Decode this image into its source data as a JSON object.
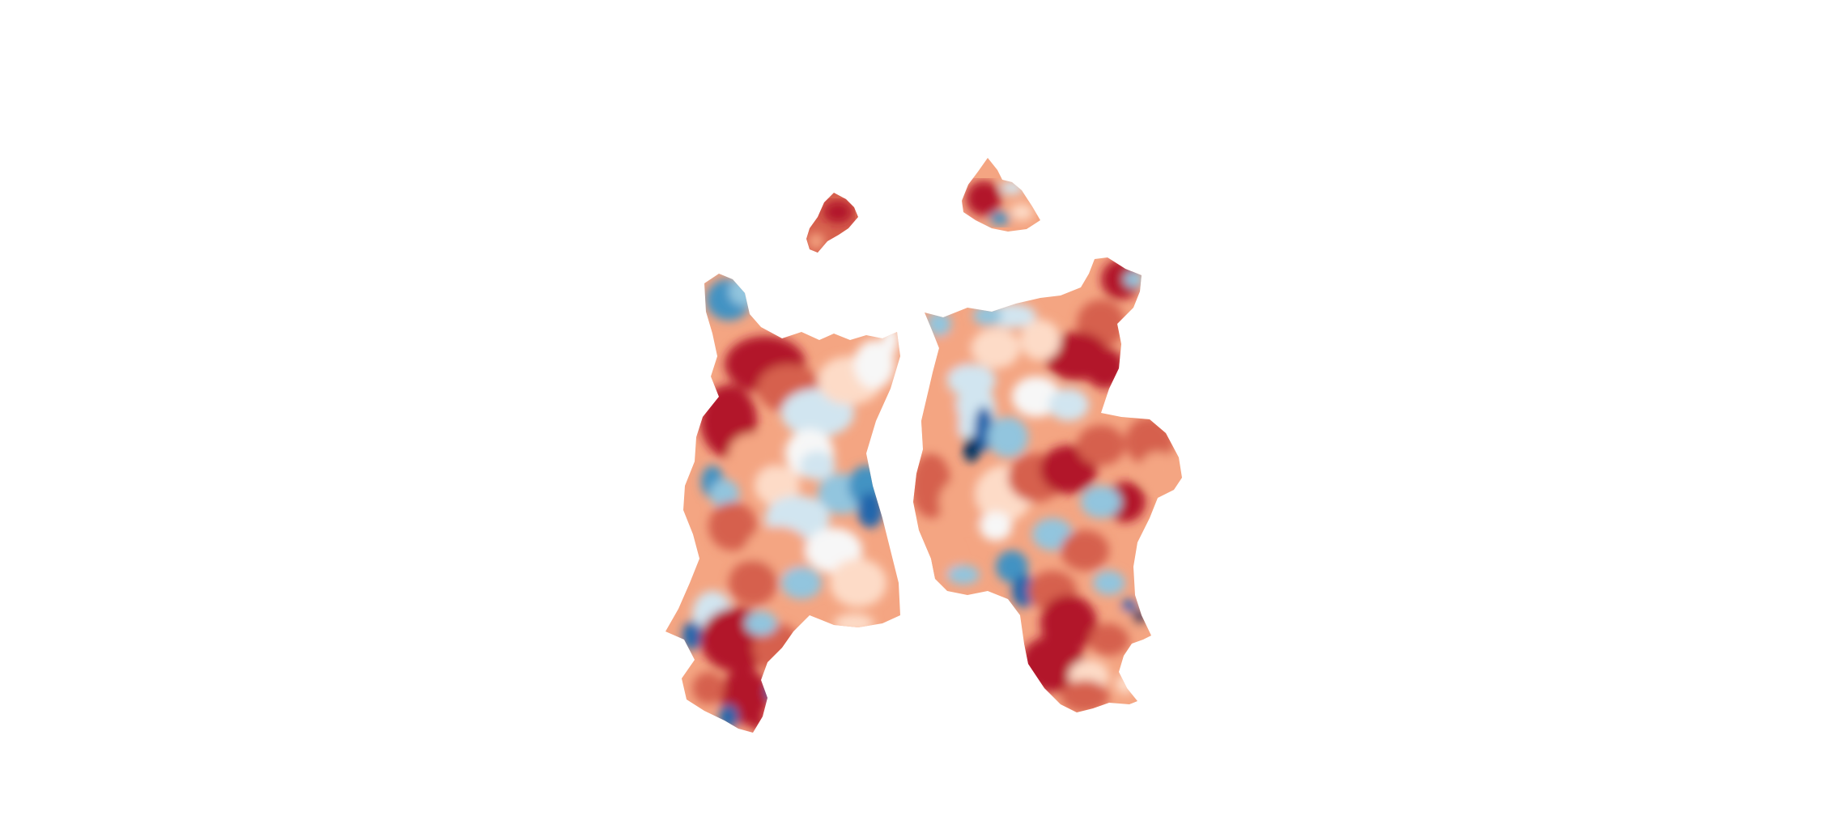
{
  "view": {
    "background": "#ffffff",
    "colormap": "RdBu_r",
    "palette": {
      "deep_red": "#b2182b",
      "red": "#d6604d",
      "salmon": "#f4a582",
      "pale_red": "#fddbc7",
      "white": "#f7f7f7",
      "pale_blue": "#d1e5f0",
      "light_blue": "#92c5de",
      "blue": "#4393c3",
      "dark_blue": "#2166ac",
      "navy": "#053061"
    },
    "surfaces": [
      {
        "name": "left-hemisphere-flatmap"
      },
      {
        "name": "right-hemisphere-flatmap"
      },
      {
        "name": "left-medial-wall-fragment"
      },
      {
        "name": "right-medial-wall-fragment"
      }
    ]
  }
}
